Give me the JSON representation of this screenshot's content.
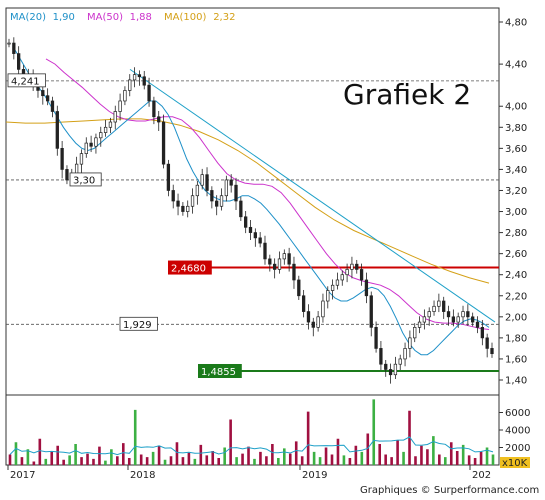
{
  "chart_data": {
    "type": "candlestick",
    "title": "Grafiek 2",
    "credit": "Graphiques © Surperformance.com",
    "ylim": [
      1.3,
      4.85
    ],
    "y_ticks": [
      1.4,
      1.6,
      1.8,
      2.0,
      2.2,
      2.4,
      2.6,
      2.8,
      3.0,
      3.2,
      3.4,
      3.6,
      3.8,
      4.0,
      4.4,
      4.8
    ],
    "y_tick_labels": [
      "1,40",
      "1,60",
      "1,80",
      "2,00",
      "2,20",
      "2,40",
      "2,60",
      "2,80",
      "3,00",
      "3,20",
      "3,40",
      "3,60",
      "3,80",
      "4,00",
      "4,40",
      "4,80"
    ],
    "x_tick_labels": [
      "2017",
      "2018",
      "2019",
      "202"
    ],
    "legend": [
      {
        "label": "MA(20)",
        "value": "1,90",
        "color": "#1e90c8"
      },
      {
        "label": "MA(50)",
        "value": "1,88",
        "color": "#cc33cc"
      },
      {
        "label": "MA(100)",
        "value": "2,32",
        "color": "#d4a017"
      }
    ],
    "price_levels": [
      {
        "label": "4,241",
        "value": 4.241,
        "style": "dashed-black"
      },
      {
        "label": "3,30",
        "value": 3.3,
        "style": "dashed-black"
      },
      {
        "label": "2,4680",
        "value": 2.468,
        "style": "solid-red",
        "color": "#cc0000"
      },
      {
        "label": "1,929",
        "value": 1.929,
        "style": "dashed-black"
      },
      {
        "label": "1,4855",
        "value": 1.4855,
        "style": "solid-green",
        "color": "#1a7a1a"
      }
    ],
    "trendline": {
      "color": "#1ea0c8",
      "from": {
        "x": "2018",
        "y": 4.35
      },
      "to": {
        "x": "2020",
        "y": 1.95
      }
    },
    "close_series": [
      4.6,
      4.5,
      4.35,
      4.3,
      4.28,
      4.2,
      4.15,
      4.1,
      4.05,
      3.95,
      3.6,
      3.4,
      3.3,
      3.35,
      3.45,
      3.55,
      3.65,
      3.62,
      3.7,
      3.75,
      3.8,
      3.85,
      3.95,
      4.05,
      4.15,
      4.25,
      4.3,
      4.28,
      4.2,
      4.05,
      3.9,
      3.85,
      3.45,
      3.2,
      3.1,
      3.05,
      3.0,
      3.05,
      3.15,
      3.25,
      3.35,
      3.2,
      3.1,
      3.05,
      3.15,
      3.3,
      3.25,
      3.1,
      2.95,
      2.85,
      2.8,
      2.75,
      2.7,
      2.55,
      2.5,
      2.45,
      2.55,
      2.6,
      2.5,
      2.35,
      2.2,
      2.05,
      1.95,
      1.9,
      2.0,
      2.15,
      2.25,
      2.3,
      2.35,
      2.4,
      2.45,
      2.5,
      2.45,
      2.35,
      2.2,
      1.9,
      1.7,
      1.55,
      1.5,
      1.45,
      1.55,
      1.6,
      1.7,
      1.8,
      1.9,
      1.95,
      2.0,
      2.05,
      2.1,
      2.15,
      2.05,
      2.0,
      1.95,
      2.0,
      2.05,
      2.0,
      1.95,
      1.9,
      1.8,
      1.7,
      1.65
    ],
    "ma20": [
      4.55,
      4.45,
      4.35,
      4.25,
      4.18,
      4.1,
      4.0,
      3.9,
      3.8,
      3.72,
      3.65,
      3.6,
      3.58,
      3.6,
      3.65,
      3.7,
      3.75,
      3.8,
      3.85,
      3.9,
      3.95,
      4.0,
      4.05,
      4.05,
      4.0,
      3.92,
      3.8,
      3.65,
      3.5,
      3.38,
      3.28,
      3.2,
      3.15,
      3.12,
      3.1,
      3.1,
      3.12,
      3.15,
      3.15,
      3.12,
      3.08,
      3.02,
      2.95,
      2.88,
      2.8,
      2.72,
      2.64,
      2.56,
      2.48,
      2.4,
      2.32,
      2.24,
      2.18,
      2.15,
      2.15,
      2.18,
      2.22,
      2.26,
      2.28,
      2.26,
      2.2,
      2.1,
      1.98,
      1.85,
      1.75,
      1.68,
      1.64,
      1.64,
      1.68,
      1.74,
      1.8,
      1.86,
      1.92,
      1.96,
      1.98,
      1.97,
      1.94,
      1.9
    ],
    "ma50": [
      4.45,
      4.4,
      4.32,
      4.25,
      4.18,
      4.1,
      4.02,
      3.95,
      3.9,
      3.87,
      3.86,
      3.86,
      3.88,
      3.9,
      3.9,
      3.87,
      3.8,
      3.7,
      3.58,
      3.46,
      3.36,
      3.3,
      3.27,
      3.26,
      3.26,
      3.24,
      3.18,
      3.08,
      2.96,
      2.84,
      2.72,
      2.6,
      2.5,
      2.42,
      2.37,
      2.34,
      2.32,
      2.3,
      2.26,
      2.2,
      2.12,
      2.04,
      1.98,
      1.95,
      1.94,
      1.94,
      1.93,
      1.91,
      1.89,
      1.88
    ],
    "ma100": [
      3.85,
      3.84,
      3.84,
      3.85,
      3.86,
      3.87,
      3.88,
      3.88,
      3.86,
      3.82,
      3.76,
      3.68,
      3.58,
      3.46,
      3.32,
      3.18,
      3.04,
      2.92,
      2.82,
      2.74,
      2.66,
      2.58,
      2.5,
      2.43,
      2.37,
      2.32
    ],
    "volume": {
      "ylim": [
        0,
        8000
      ],
      "y_ticks": [
        2000,
        4000,
        6000
      ],
      "y_tick_labels": [
        "2000",
        "4000",
        "6000"
      ],
      "unit_label": "x10K",
      "avg_color": "#1ea0c8",
      "values": [
        1200,
        2600,
        900,
        1800,
        400,
        3000,
        700,
        1500,
        2200,
        600,
        1100,
        2400,
        900,
        1300,
        700,
        2100,
        500,
        1800,
        1000,
        2500,
        800,
        6300,
        1200,
        900,
        1500,
        2200,
        600,
        1000,
        2600,
        900,
        1400,
        700,
        2300,
        1100,
        1600,
        800,
        2000,
        5200,
        900,
        1300,
        2100,
        700,
        1500,
        1000,
        2400,
        800,
        1900,
        1300,
        2700,
        1000,
        6100,
        1500,
        900,
        2000,
        1200,
        3000,
        1100,
        800,
        2200,
        1500,
        3600,
        7500,
        2400,
        1200,
        900,
        2800,
        1500,
        6200,
        1000,
        2200,
        1800,
        3300,
        1200,
        900,
        2600,
        1600,
        2300,
        1100,
        800,
        1500,
        2000,
        1200
      ]
    }
  }
}
